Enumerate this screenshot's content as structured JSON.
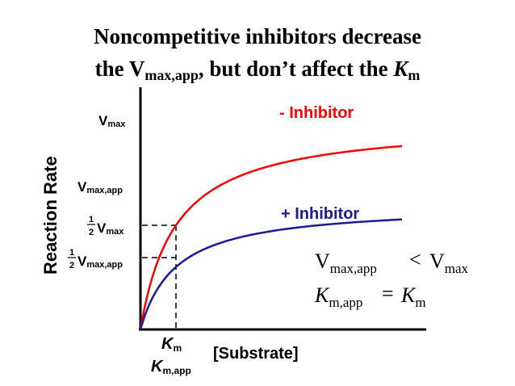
{
  "title": {
    "line1": "Noncompetitive inhibitors decrease",
    "line2_prefix": "the V",
    "line2_sub": "max,app",
    "line2_mid": ", but don’t affect the ",
    "line2_k": "K",
    "line2_ksub": "m"
  },
  "axes": {
    "ylabel": "Reaction Rate",
    "xlabel": "[Substrate]"
  },
  "y_ticks": {
    "vmax": {
      "main": "V",
      "sub": "max"
    },
    "vmax_app": {
      "main": "V",
      "sub": "max,app"
    },
    "half_vmax": {
      "num": "1",
      "den": "2",
      "main": "V",
      "sub": "max"
    },
    "half_vmax_app": {
      "num": "1",
      "den": "2",
      "main": "V",
      "sub": "max,app"
    }
  },
  "x_ticks": {
    "km": {
      "main": "K",
      "sub": "m"
    },
    "km_app": {
      "main": "K",
      "sub": "m,app"
    }
  },
  "curves": {
    "minus_inhibitor": {
      "label": "- Inhibitor",
      "color": "#ff0000",
      "vmax": 1.0,
      "km": 1.0
    },
    "plus_inhibitor": {
      "label": "+ Inhibitor",
      "color": "#1a1a99",
      "vmax": 0.6,
      "km": 1.0
    }
  },
  "equations": {
    "eq1": {
      "lhs": "V",
      "lhs_sub": "max,app",
      "op": "<",
      "rhs": "V",
      "rhs_sub": "max"
    },
    "eq2": {
      "lhs": "K",
      "lhs_sub": "m,app",
      "op": "=",
      "rhs": "K",
      "rhs_sub": "m"
    }
  },
  "colors": {
    "red": "#ff0000",
    "blue": "#1a1a99",
    "axis": "#000000"
  }
}
